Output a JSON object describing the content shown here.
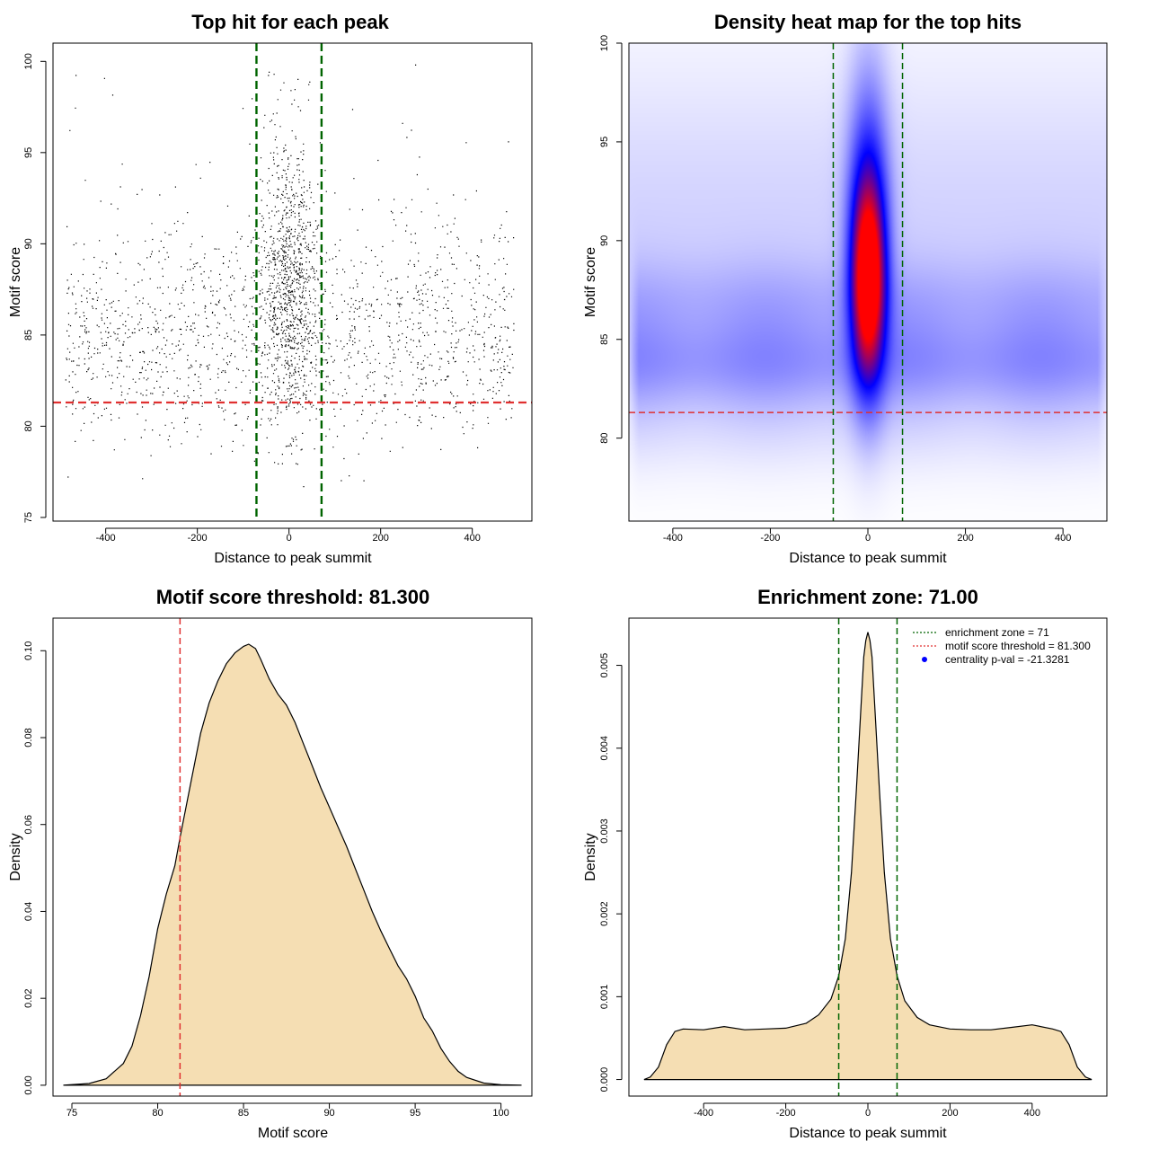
{
  "colors": {
    "fill": "#f5deb3",
    "zone": "#006400",
    "threshold": "#e03030",
    "points": "#000000",
    "heat_low": "#ffffff",
    "heat_mid": "#0000ff",
    "heat_high": "#ff0000",
    "pval_marker": "#0000ff"
  },
  "chart_data": [
    {
      "id": "scatter",
      "type": "scatter",
      "title": "Top hit for each peak",
      "xlabel": "Distance to peak summit",
      "ylabel": "Motif score",
      "xlim": [
        -515,
        530
      ],
      "ylim": [
        74.8,
        101
      ],
      "xticks": [
        -400,
        -200,
        0,
        200,
        400
      ],
      "yticks": [
        75,
        80,
        85,
        90,
        95,
        100
      ],
      "vlines": [
        -71,
        71
      ],
      "hline": 81.3,
      "point_count": 14000,
      "x_range": [
        -490,
        490
      ],
      "central_peak": {
        "x_center": 0,
        "x_sd": 30,
        "y_center": 88,
        "y_sd": 4
      },
      "background": {
        "y_center": 85,
        "y_sd": 3
      }
    },
    {
      "id": "heatmap",
      "type": "heatmap",
      "title": "Density heat map for the top hits",
      "xlabel": "Distance to peak summit",
      "ylabel": "Motif score",
      "xlim": [
        -490,
        490
      ],
      "ylim": [
        75.8,
        100
      ],
      "xticks": [
        -400,
        -200,
        0,
        200,
        400
      ],
      "yticks": [
        80,
        85,
        90,
        95,
        100
      ],
      "vlines": [
        -71,
        71
      ],
      "hline": 81.3,
      "hotspot": {
        "x": 0,
        "y": 88
      }
    },
    {
      "id": "score_density",
      "type": "area",
      "title": "Motif score threshold: 81.300",
      "xlabel": "Motif score",
      "ylabel": "Density",
      "xlim": [
        73.9,
        101.8
      ],
      "ylim": [
        -0.0025,
        0.1075
      ],
      "xticks": [
        75,
        80,
        85,
        90,
        95,
        100
      ],
      "yticks": [
        0.0,
        0.02,
        0.04,
        0.06,
        0.08,
        0.1
      ],
      "ytick_labels": [
        "0.00",
        "0.02",
        "0.04",
        "0.06",
        "0.08",
        "0.10"
      ],
      "vline": 81.3,
      "x": [
        74.5,
        76,
        77,
        78,
        78.5,
        79,
        79.5,
        80,
        80.5,
        81,
        81.3,
        81.7,
        82,
        82.5,
        83,
        83.5,
        84,
        84.5,
        85,
        85.3,
        85.7,
        86,
        86.5,
        87,
        87.5,
        88,
        88.5,
        89,
        89.5,
        90,
        90.5,
        91,
        91.5,
        92,
        92.5,
        93,
        93.5,
        94,
        94.5,
        95,
        95.5,
        96,
        96.5,
        97,
        97.5,
        98,
        99,
        100,
        101.2
      ],
      "y": [
        0.0,
        0.0004,
        0.0015,
        0.005,
        0.009,
        0.016,
        0.025,
        0.036,
        0.044,
        0.0505,
        0.057,
        0.065,
        0.071,
        0.081,
        0.088,
        0.093,
        0.097,
        0.0995,
        0.101,
        0.1015,
        0.1005,
        0.098,
        0.0935,
        0.09,
        0.0875,
        0.0835,
        0.0785,
        0.0735,
        0.0685,
        0.064,
        0.0595,
        0.055,
        0.05,
        0.045,
        0.04,
        0.0355,
        0.0315,
        0.0275,
        0.0245,
        0.0205,
        0.0155,
        0.0125,
        0.0085,
        0.0055,
        0.0032,
        0.0018,
        0.0005,
        0.0001,
        0.0
      ]
    },
    {
      "id": "distance_density",
      "type": "area",
      "title": "Enrichment zone: 71.00",
      "xlabel": "Distance to peak summit",
      "ylabel": "Density",
      "xlim": [
        -582,
        582
      ],
      "ylim": [
        -0.0002,
        0.00557
      ],
      "xticks": [
        -400,
        -200,
        0,
        200,
        400
      ],
      "yticks": [
        0.0,
        0.001,
        0.002,
        0.003,
        0.004,
        0.005
      ],
      "ytick_labels": [
        "0.000",
        "0.001",
        "0.002",
        "0.003",
        "0.004",
        "0.005"
      ],
      "vlines": [
        -71,
        71
      ],
      "x": [
        -545,
        -530,
        -510,
        -490,
        -470,
        -450,
        -400,
        -350,
        -300,
        -250,
        -200,
        -150,
        -120,
        -90,
        -71,
        -55,
        -40,
        -28,
        -18,
        -10,
        -5,
        0,
        5,
        10,
        18,
        28,
        40,
        55,
        71,
        90,
        120,
        150,
        200,
        250,
        300,
        350,
        400,
        450,
        470,
        490,
        510,
        530,
        545
      ],
      "y": [
        0.0,
        3e-05,
        0.00015,
        0.00042,
        0.00058,
        0.00061,
        0.0006,
        0.00064,
        0.0006,
        0.00061,
        0.00062,
        0.00068,
        0.00078,
        0.00097,
        0.00125,
        0.0017,
        0.0025,
        0.0035,
        0.0044,
        0.0051,
        0.0053,
        0.0054,
        0.0053,
        0.0051,
        0.0044,
        0.0035,
        0.0025,
        0.0017,
        0.00125,
        0.00095,
        0.00075,
        0.00066,
        0.00061,
        0.0006,
        0.0006,
        0.00063,
        0.00066,
        0.00061,
        0.00058,
        0.00042,
        0.00015,
        3e-05,
        0.0
      ],
      "legend": [
        {
          "label": "enrichment zone = 71",
          "style": "dotted",
          "color_key": "zone"
        },
        {
          "label": "motif score threshold = 81.300",
          "style": "dotted",
          "color_key": "threshold"
        },
        {
          "label": "centrality p-val = -21.3281",
          "style": "point",
          "color_key": "pval_marker"
        }
      ]
    }
  ]
}
